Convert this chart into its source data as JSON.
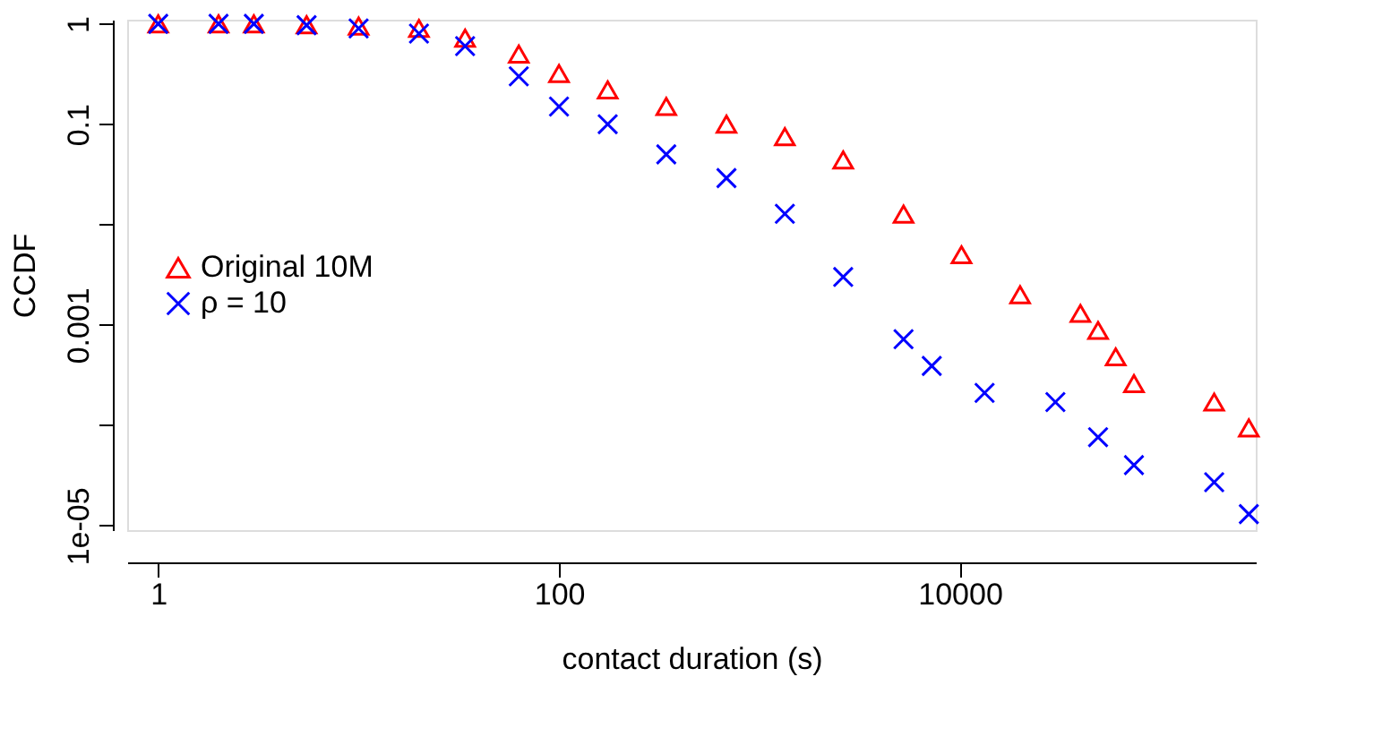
{
  "chart_data": {
    "type": "scatter",
    "xlabel": "contact duration (s)",
    "ylabel": "CCDF",
    "log": "xy",
    "grid": false,
    "legend": "left",
    "xlim": [
      0.7,
      300000
    ],
    "xticks": [
      1,
      100,
      10000
    ],
    "ylim": [
      9e-06,
      1.1
    ],
    "yticks": [
      1,
      0.1,
      {
        "value": 0.01,
        "label": null
      },
      0.001,
      {
        "value": 0.0001,
        "label": null
      },
      {
        "value": 1e-05,
        "label": "1e-05"
      }
    ],
    "series": [
      {
        "name": "Original 10M",
        "color": "#ff0000",
        "marker": "triangle",
        "x": [
          1,
          2,
          3,
          5.5,
          10,
          20,
          34,
          63,
          100,
          175,
          343,
          685,
          1340,
          2620,
          5240,
          10200,
          20000,
          40000,
          49000,
          60000,
          74000,
          186000,
          277000
        ],
        "values": [
          1,
          1,
          1,
          0.98,
          0.95,
          0.9,
          0.72,
          0.5,
          0.32,
          0.22,
          0.15,
          0.1,
          0.075,
          0.044,
          0.0127,
          0.005,
          0.002,
          0.0013,
          0.00088,
          0.00048,
          0.00026,
          0.00017,
          9.4e-05
        ]
      },
      {
        "name": "ρ = 10",
        "color": "#0000ff",
        "marker": "cross",
        "x": [
          1,
          2,
          3,
          5.5,
          10,
          20,
          34,
          63,
          100,
          175,
          343,
          685,
          1340,
          2620,
          5240,
          7250,
          13300,
          30000,
          49000,
          74000,
          186000,
          277000
        ],
        "values": [
          1,
          1,
          1,
          0.97,
          0.9,
          0.8,
          0.6,
          0.3,
          0.15,
          0.1,
          0.05,
          0.029,
          0.0128,
          0.003,
          0.00072,
          0.00039,
          0.00021,
          0.00017,
          7.6e-05,
          4e-05,
          2.7e-05,
          1.3e-05
        ]
      }
    ]
  }
}
